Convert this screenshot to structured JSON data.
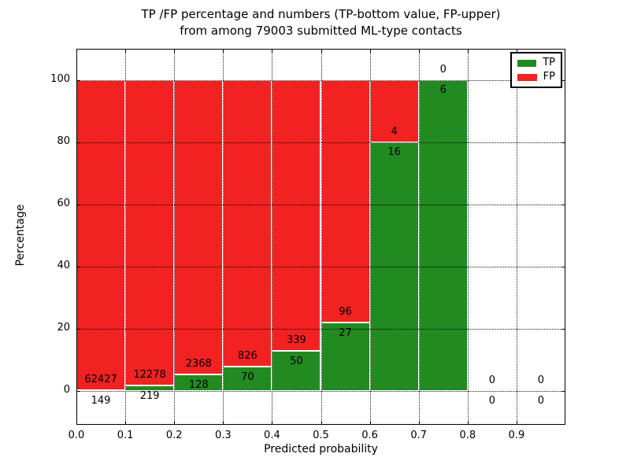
{
  "chart_data": {
    "type": "bar",
    "stacked": true,
    "title_lines": [
      "TP /FP percentage and numbers (TP-bottom value, FP-upper)",
      "from among 79003 submitted ML-type contacts"
    ],
    "total_submitted": 79003,
    "xlabel": "Predicted probability",
    "ylabel": "Percentage",
    "xlim": [
      0.0,
      1.0
    ],
    "ylim": [
      -11,
      110
    ],
    "x_tick_labels": [
      "0.0",
      "0.1",
      "0.2",
      "0.3",
      "0.4",
      "0.5",
      "0.6",
      "0.7",
      "0.8",
      "0.9"
    ],
    "y_tick_values": [
      0,
      20,
      40,
      60,
      80,
      100
    ],
    "grid": "dotted",
    "categories": [
      "0.0-0.1",
      "0.1-0.2",
      "0.2-0.3",
      "0.3-0.4",
      "0.4-0.5",
      "0.5-0.6",
      "0.6-0.7",
      "0.7-0.8",
      "0.8-0.9",
      "0.9-1.0"
    ],
    "series": [
      {
        "name": "TP",
        "values": [
          149,
          219,
          128,
          70,
          50,
          27,
          16,
          6,
          0,
          0
        ]
      },
      {
        "name": "FP",
        "values": [
          62427,
          12278,
          2368,
          826,
          339,
          96,
          4,
          0,
          0,
          0
        ]
      }
    ],
    "tp_percent": [
      0.24,
      1.75,
      5.13,
      7.81,
      12.85,
      21.95,
      80.0,
      100.0,
      0,
      0
    ],
    "bar_total_percent": 100,
    "legend": {
      "position": "upper right",
      "entries": [
        {
          "label": "TP",
          "color_key": "tp"
        },
        {
          "label": "FP",
          "color_key": "fp"
        }
      ]
    },
    "colors": {
      "tp": "#218a21",
      "fp": "#f22222",
      "bar_edge": "#ffffff",
      "axes": "#000000",
      "text": "#000000",
      "background": "#ffffff"
    }
  }
}
